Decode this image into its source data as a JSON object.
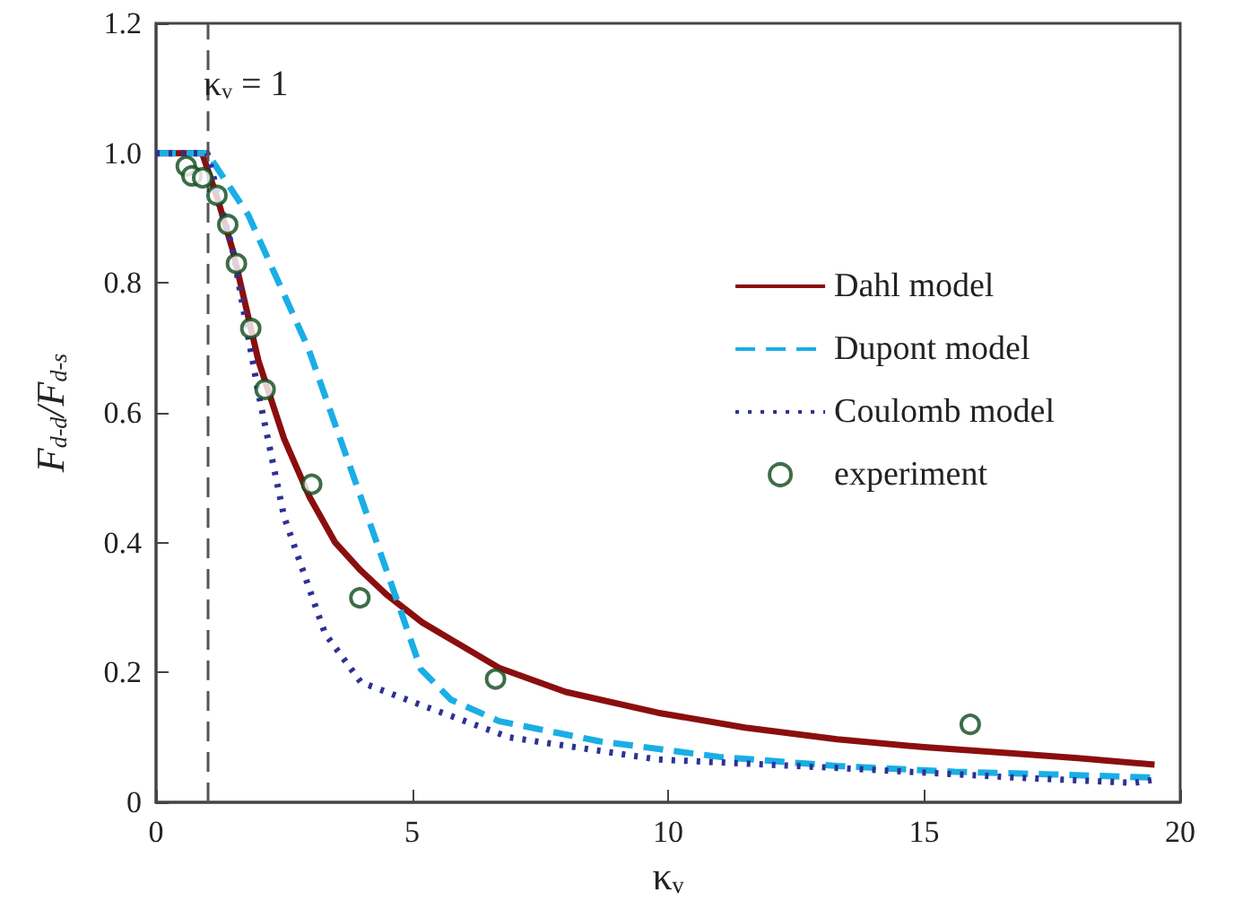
{
  "chart_data": {
    "type": "line",
    "xlabel": "κᵥ",
    "ylabel": "F$_{d-d}$/F$_{d-s}$",
    "xlim": [
      0,
      20
    ],
    "xticks": [
      0,
      5,
      10,
      15,
      20
    ],
    "ylim": [
      0,
      1.2
    ],
    "yticks": [
      0,
      0.2,
      0.4,
      0.6,
      0.8,
      {
        "value": 1,
        "label": "1.0"
      },
      1.2
    ],
    "grid": false,
    "legend": "right",
    "series": [
      {
        "name": "Dahl model",
        "line_style": "solid",
        "color": "#8b0e0e",
        "x": [
          0,
          0.9,
          1.2,
          1.5,
          2,
          2.5,
          3,
          3.5,
          4,
          4.5,
          5.2,
          6.7,
          8,
          9.8,
          11.5,
          13.3,
          15,
          16.8,
          18,
          19.5
        ],
        "values": [
          1,
          1,
          0.93,
          0.85,
          0.68,
          0.56,
          0.47,
          0.4,
          0.357,
          0.32,
          0.277,
          0.207,
          0.17,
          0.138,
          0.115,
          0.097,
          0.085,
          0.075,
          0.068,
          0.058
        ]
      },
      {
        "name": "Dupont model",
        "line_style": "dashed",
        "color": "#1aaee6",
        "x": [
          0,
          1,
          1.8,
          2.97,
          3.91,
          4.8,
          5.17,
          5.76,
          6.7,
          8.66,
          11,
          13.3,
          15.6,
          17.5,
          19.5
        ],
        "values": [
          1,
          1,
          0.905,
          0.7,
          0.49,
          0.29,
          0.205,
          0.158,
          0.125,
          0.094,
          0.07,
          0.056,
          0.047,
          0.043,
          0.038
        ]
      },
      {
        "name": "Coulomb model",
        "line_style": "dotted",
        "color": "#2e3192",
        "x": [
          0,
          1,
          1.5,
          2,
          2.5,
          3.3,
          4,
          5.17,
          6.9,
          9.8,
          13.3,
          16.8,
          19.1,
          19.5
        ],
        "values": [
          1,
          1,
          0.85,
          0.63,
          0.44,
          0.26,
          0.185,
          0.15,
          0.1,
          0.066,
          0.053,
          0.038,
          0.03,
          0.035
        ]
      },
      {
        "name": "experiment",
        "type": "scatter",
        "marker": "circle",
        "color": "#0d4a1a",
        "x": [
          0.59,
          0.7,
          0.91,
          1.19,
          1.4,
          1.57,
          1.85,
          2.13,
          3.04,
          3.98,
          6.63,
          15.9
        ],
        "values": [
          0.98,
          0.965,
          0.962,
          0.935,
          0.89,
          0.83,
          0.73,
          0.636,
          0.49,
          0.315,
          0.19,
          0.12
        ]
      }
    ],
    "ref_lines": [
      {
        "axis": "x",
        "value": 1,
        "label": "κᵥ = 1",
        "line_style": "dashed",
        "color": "#555555"
      }
    ]
  }
}
